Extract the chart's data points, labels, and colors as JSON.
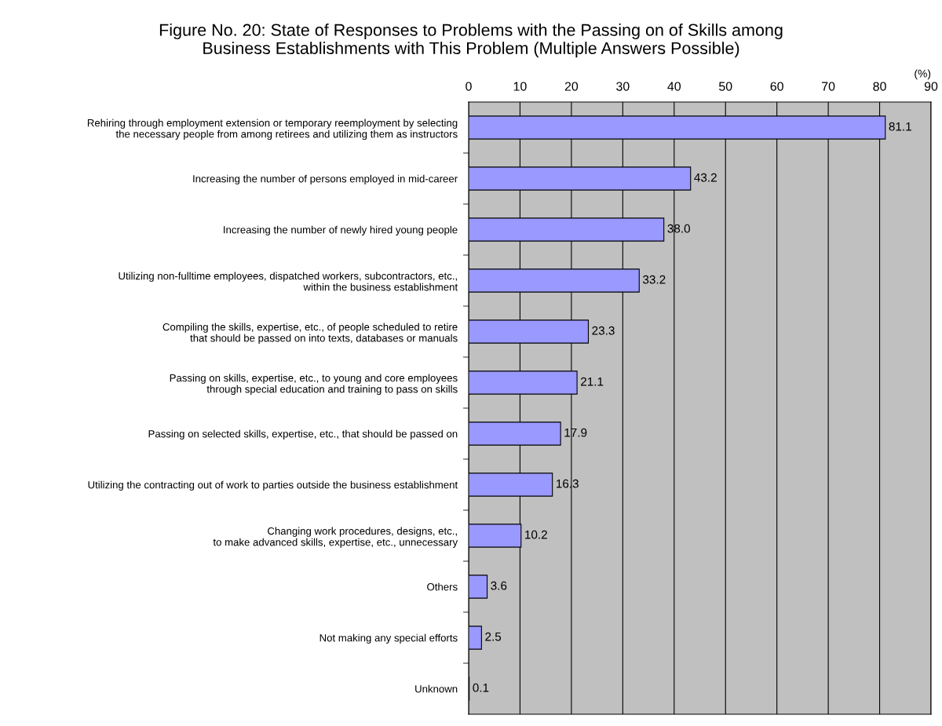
{
  "chart_data": {
    "type": "bar",
    "orientation": "horizontal",
    "title": "Figure No. 20: State of Responses to Problems with the Passing on of Skills among\nBusiness Establishments with This Problem (Multiple Answers Possible)",
    "xlabel": "(%)",
    "categories": [
      "Rehiring through employment extension or temporary reemployment by selecting\nthe necessary people from among retirees and utilizing them as instructors",
      "Increasing the number of persons employed in mid-career",
      "Increasing the number of newly hired young people",
      "Utilizing non-fulltime employees, dispatched workers, subcontractors, etc.,\nwithin the business establishment",
      "Compiling the skills, expertise, etc., of people scheduled to retire\nthat should be passed on into texts, databases or manuals",
      "Passing on skills, expertise, etc., to young and core employees\nthrough special education and training to pass on skills",
      "Passing on selected skills, expertise, etc., that should be passed on",
      "Utilizing the contracting out of work to parties outside the business establishment",
      "Changing work procedures, designs, etc.,\nto make advanced skills, expertise, etc., unnecessary",
      "Others",
      "Not making any special efforts",
      "Unknown"
    ],
    "values": [
      81.1,
      43.2,
      38.0,
      33.2,
      23.3,
      21.1,
      17.9,
      16.3,
      10.2,
      3.6,
      2.5,
      0.1
    ],
    "value_labels": [
      "81.1",
      "43.2",
      "38.0",
      "33.2",
      "23.3",
      "21.1",
      "17.9",
      "16.3",
      "10.2",
      "3.6",
      "2.5",
      "0.1"
    ],
    "color": "#9999ff",
    "xlim": [
      0,
      90
    ],
    "xticks": [
      0,
      10,
      20,
      30,
      40,
      50,
      60,
      70,
      80,
      90
    ],
    "grid": "x",
    "legend": false
  }
}
